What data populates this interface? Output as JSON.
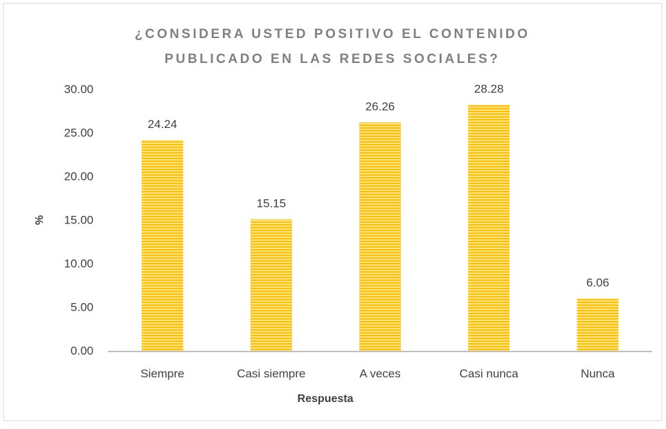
{
  "chart_data": {
    "type": "bar",
    "title": [
      "¿CONSIDERA USTED POSITIVO EL CONTENIDO",
      "PUBLICADO EN LAS REDES SOCIALES?"
    ],
    "x_label": "Respuesta",
    "y_label": "%",
    "categories": [
      "Siempre",
      "Casi siempre",
      "A veces",
      "Casi nunca",
      "Nunca"
    ],
    "values": [
      24.24,
      15.15,
      26.26,
      28.28,
      6.06
    ],
    "color": "#FFC000",
    "ylim": [
      0,
      30
    ],
    "yticks": [
      {
        "value": 0,
        "label": "0.00"
      },
      {
        "value": 5,
        "label": "5.00"
      },
      {
        "value": 10,
        "label": "10.00"
      },
      {
        "value": 15,
        "label": "15.00"
      },
      {
        "value": 20,
        "label": "20.00"
      },
      {
        "value": 25,
        "label": "25.00"
      },
      {
        "value": 30,
        "label": "30.00"
      }
    ],
    "grid": false
  }
}
